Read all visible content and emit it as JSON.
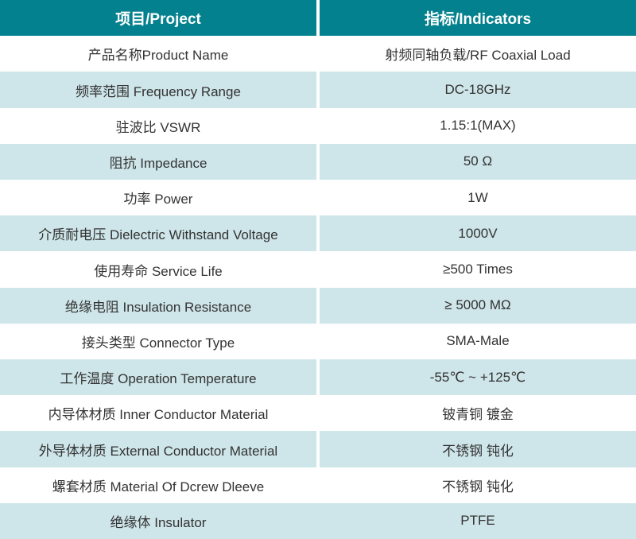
{
  "table": {
    "header": {
      "project": "项目/Project",
      "indicators": "指标/Indicators"
    },
    "rows": [
      {
        "project": "产品名称Product Name",
        "indicator": "射频同轴负载/RF Coaxial Load"
      },
      {
        "project": "频率范围 Frequency Range",
        "indicator": "DC-18GHz"
      },
      {
        "project": "驻波比 VSWR",
        "indicator": "1.15:1(MAX)"
      },
      {
        "project": "阻抗 Impedance",
        "indicator": "50 Ω"
      },
      {
        "project": "功率 Power",
        "indicator": "1W"
      },
      {
        "project": "介质耐电压 Dielectric Withstand Voltage",
        "indicator": "1000V"
      },
      {
        "project": "使用寿命 Service Life",
        "indicator": "≥500 Times"
      },
      {
        "project": "绝缘电阻 Insulation Resistance",
        "indicator": "≥ 5000 MΩ"
      },
      {
        "project": "接头类型 Connector Type",
        "indicator": "SMA-Male"
      },
      {
        "project": "工作温度 Operation Temperature",
        "indicator": "-55℃ ~ +125℃"
      },
      {
        "project": "内导体材质 Inner Conductor Material",
        "indicator": "铍青铜 镀金"
      },
      {
        "project": "外导体材质 External Conductor Material",
        "indicator": "不锈钢 钝化"
      },
      {
        "project": "螺套材质 Material Of Dcrew Dleeve",
        "indicator": "不锈钢 钝化"
      },
      {
        "project": "绝缘体 Insulator",
        "indicator": "PTFE"
      }
    ],
    "colors": {
      "header_bg": "#04818e",
      "header_text": "#ffffff",
      "band_bg": "#cee5e9",
      "row_bg": "#ffffff",
      "body_text": "#333333",
      "divider": "#ffffff"
    }
  }
}
